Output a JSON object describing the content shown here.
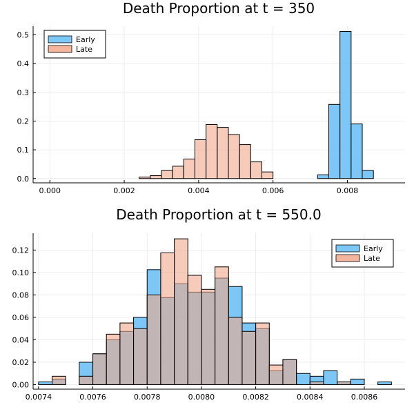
{
  "colors": {
    "early": "#6ec1f5",
    "late": "#f2a98b",
    "overlap": "#a89798",
    "edge": "#000000",
    "grid": "#e8e8e8"
  },
  "chart_data": [
    {
      "type": "bar",
      "title": "Death Proportion at t = 350",
      "xlabel": "",
      "ylabel": "",
      "xlim": [
        -0.00045,
        0.00955
      ],
      "ylim": [
        -0.015,
        0.53
      ],
      "grid": true,
      "legend_position": "top-left",
      "x_ticks": [
        0.0,
        0.002,
        0.004,
        0.006,
        0.008
      ],
      "x_tick_labels": [
        "0.000",
        "0.002",
        "0.004",
        "0.006",
        "0.008"
      ],
      "y_ticks": [
        0.0,
        0.1,
        0.2,
        0.3,
        0.4,
        0.5
      ],
      "y_tick_labels": [
        "0.0",
        "0.1",
        "0.2",
        "0.3",
        "0.4",
        "0.5"
      ],
      "bin_width": 0.0003,
      "bin_edges_start": 0.0,
      "series": [
        {
          "name": "Early",
          "color": "#6ec1f5",
          "values": [
            0,
            0,
            0,
            0,
            0,
            0,
            0,
            0,
            0,
            0,
            0,
            0,
            0,
            0,
            0,
            0,
            0,
            0,
            0,
            0,
            0,
            0,
            0,
            0,
            0.013,
            0.258,
            0.512,
            0.19,
            0.028,
            0
          ]
        },
        {
          "name": "Late",
          "color": "#f2a98b",
          "values": [
            0,
            0,
            0,
            0,
            0,
            0,
            0,
            0,
            0.005,
            0.01,
            0.028,
            0.043,
            0.068,
            0.135,
            0.188,
            0.178,
            0.153,
            0.118,
            0.058,
            0.023,
            0,
            0,
            0,
            0,
            0,
            0,
            0,
            0,
            0,
            0
          ]
        }
      ]
    },
    {
      "type": "bar",
      "title": "Death Proportion at t = 550.0",
      "xlabel": "",
      "ylabel": "",
      "xlim": [
        0.00738,
        0.00875
      ],
      "ylim": [
        -0.004,
        0.135
      ],
      "grid": true,
      "legend_position": "top-right",
      "x_ticks": [
        0.0074,
        0.0076,
        0.0078,
        0.008,
        0.0082,
        0.0084,
        0.0086
      ],
      "x_tick_labels": [
        "0.0074",
        "0.0076",
        "0.0078",
        "0.0080",
        "0.0082",
        "0.0084",
        "0.0086"
      ],
      "y_ticks": [
        0.0,
        0.02,
        0.04,
        0.06,
        0.08,
        0.1,
        0.12
      ],
      "y_tick_labels": [
        "0.00",
        "0.02",
        "0.04",
        "0.06",
        "0.08",
        "0.10",
        "0.12"
      ],
      "bin_width": 5e-05,
      "bin_edges_start": 0.0074,
      "series": [
        {
          "name": "Early",
          "color": "#6ec1f5",
          "values": [
            0.0025,
            0.005,
            0,
            0.02,
            0.0275,
            0.04,
            0.0475,
            0.06,
            0.1025,
            0.0775,
            0.09,
            0.0825,
            0.0825,
            0.095,
            0.0875,
            0.055,
            0.05,
            0.0125,
            0.0225,
            0.01,
            0.0075,
            0.0125,
            0.0025,
            0.005,
            0,
            0.0025
          ]
        },
        {
          "name": "Late",
          "color": "#f2a98b",
          "values": [
            0,
            0.0075,
            0,
            0.0075,
            0.0275,
            0.045,
            0.055,
            0.05,
            0.08,
            0.1175,
            0.13,
            0.0975,
            0.085,
            0.105,
            0.06,
            0.0475,
            0.055,
            0.0175,
            0.0225,
            0,
            0.0025,
            0,
            0.0025,
            0,
            0,
            0
          ]
        }
      ]
    }
  ]
}
